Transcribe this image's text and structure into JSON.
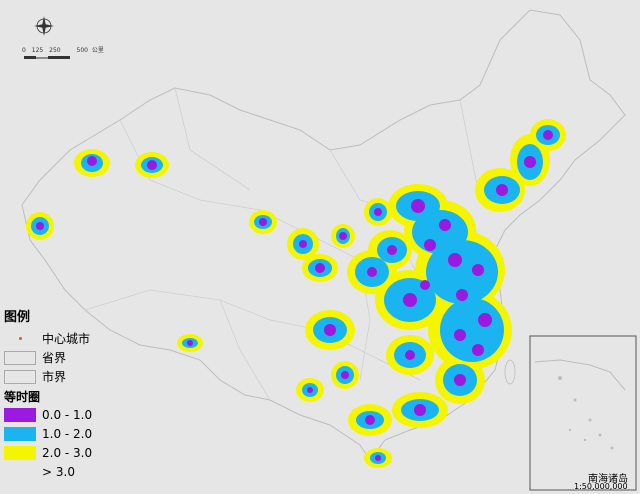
{
  "legend": {
    "title": "图例",
    "items": [
      {
        "label": "中心城市",
        "kind": "dot",
        "color": "#d06020"
      },
      {
        "label": "省界",
        "kind": "line"
      },
      {
        "label": "市界",
        "kind": "line"
      }
    ],
    "isochrone_title": "等时圈",
    "bands": [
      {
        "label": "0.0 - 1.0",
        "color": "#9a1ae0"
      },
      {
        "label": "1.0 - 2.0",
        "color": "#1ab4f0"
      },
      {
        "label": "2.0 - 3.0",
        "color": "#f5f500"
      },
      {
        "label": "> 3.0",
        "color": "#e6e6e6"
      }
    ]
  },
  "scale_bar": {
    "ticks": [
      "0",
      "125",
      "250",
      "500"
    ],
    "unit": "公里"
  },
  "inset": {
    "title": "南海诸岛",
    "scale": "1:50,000,000"
  },
  "colors": {
    "background": "#e6e6e6",
    "land": "#e6e6e6",
    "border": "#c8c8c8",
    "purple": "#9a1ae0",
    "cyan": "#1ab4f0",
    "yellow": "#f5f500"
  },
  "icons": [
    "north-arrow-icon"
  ]
}
